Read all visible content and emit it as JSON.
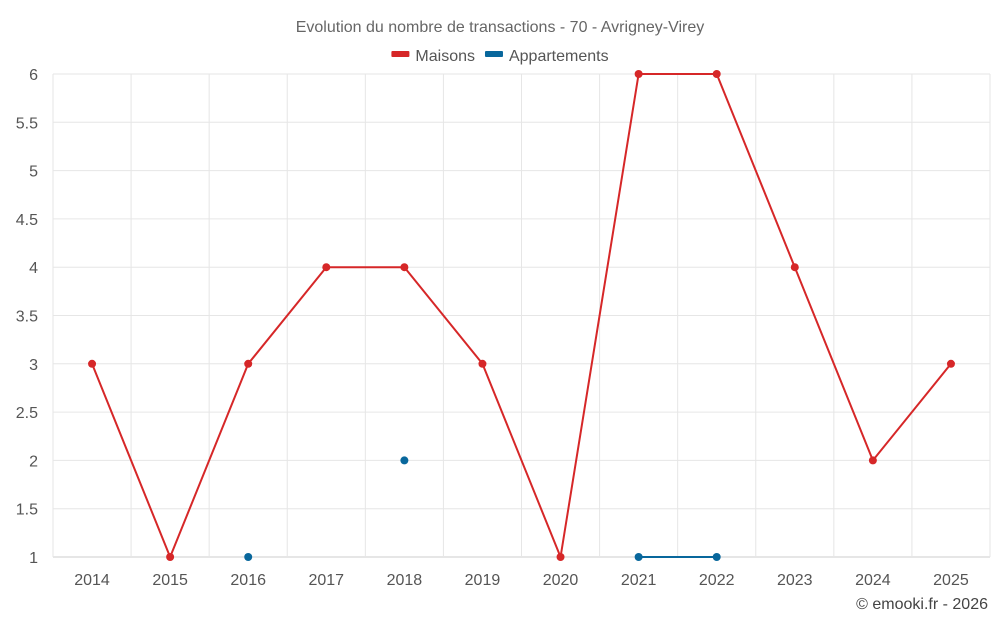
{
  "chart_data": {
    "type": "line",
    "title": "Evolution du nombre de transactions - 70 - Avrigney-Virey",
    "xlabel": "",
    "ylabel": "",
    "categories": [
      "2014",
      "2015",
      "2016",
      "2017",
      "2018",
      "2019",
      "2020",
      "2021",
      "2022",
      "2023",
      "2024",
      "2025"
    ],
    "ylim": [
      1,
      6
    ],
    "yticks": [
      "1",
      "1.5",
      "2",
      "2.5",
      "3",
      "3.5",
      "4",
      "4.5",
      "5",
      "5.5",
      "6"
    ],
    "grid": true,
    "legend_position": "top-center",
    "series": [
      {
        "name": "Maisons",
        "color": "#d62728",
        "values": [
          3,
          1,
          3,
          4,
          4,
          3,
          1,
          6,
          6,
          4,
          2,
          3
        ]
      },
      {
        "name": "Appartements",
        "color": "#08679c",
        "values": [
          null,
          null,
          1,
          null,
          2,
          null,
          null,
          1,
          1,
          null,
          null,
          null
        ]
      }
    ]
  },
  "credit": "© emooki.fr - 2026"
}
